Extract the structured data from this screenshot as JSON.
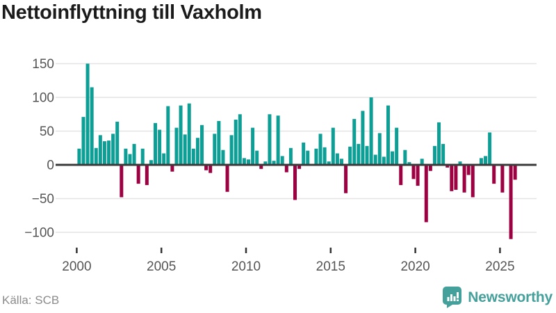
{
  "title": "Nettoinflyttning till Vaxholm",
  "source_label": "Källa: SCB",
  "brand": "Newsworthy",
  "colors": {
    "positive": "#0d9f96",
    "negative": "#9e0142",
    "grid": "#e4e4e4",
    "zero_line": "#3a3a3a",
    "tick_mark": "#333333",
    "axis_text": "#555555",
    "title_text": "#1b1b1b",
    "source_text": "#8b8b8b",
    "brand_teal": "#44a09b"
  },
  "chart_data": {
    "type": "bar",
    "title": "Nettoinflyttning till Vaxholm",
    "frequency": "quarterly",
    "x_start_year": 2000,
    "x_tick_years": [
      2000,
      2005,
      2010,
      2015,
      2020,
      2025
    ],
    "y_ticks": [
      150,
      100,
      50,
      0,
      -50,
      -100
    ],
    "ylim": [
      -120,
      165
    ],
    "grid": true,
    "legend": "none",
    "source": "SCB",
    "series": [
      {
        "name": "Nettoinflyttning",
        "values": [
          24,
          71,
          150,
          115,
          25,
          44,
          35,
          36,
          46,
          64,
          -48,
          24,
          16,
          31,
          -28,
          24,
          -30,
          7,
          62,
          52,
          17,
          87,
          -10,
          55,
          88,
          45,
          91,
          24,
          40,
          59,
          -8,
          -12,
          46,
          65,
          22,
          -40,
          44,
          67,
          75,
          10,
          8,
          55,
          21,
          -6,
          5,
          75,
          6,
          73,
          13,
          -11,
          25,
          -52,
          -6,
          33,
          21,
          0,
          24,
          46,
          26,
          5,
          55,
          17,
          9,
          -42,
          27,
          68,
          31,
          80,
          28,
          100,
          15,
          47,
          12,
          88,
          20,
          55,
          -30,
          22,
          4,
          -21,
          -31,
          9,
          -85,
          -9,
          28,
          63,
          31,
          -4,
          -39,
          -37,
          5,
          -41,
          -15,
          -48,
          0,
          10,
          13,
          48,
          -28,
          0,
          -41,
          0,
          -110,
          -22
        ]
      }
    ]
  }
}
